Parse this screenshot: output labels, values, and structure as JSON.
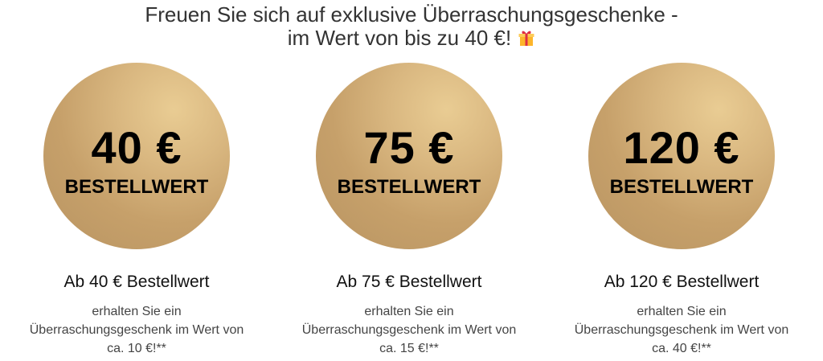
{
  "title": {
    "line1": "Freuen Sie sich auf exklusive Überraschungsgeschenke -",
    "line2": "im Wert von bis zu 40 €!",
    "icon": "gift-icon"
  },
  "tiers": [
    {
      "amount": "40 €",
      "label": "BESTELLWERT",
      "heading": "Ab 40 € Bestellwert",
      "line1": "erhalten Sie ein",
      "line2": "Überraschungsgeschenk im Wert von",
      "line3": "ca. 10 €!**"
    },
    {
      "amount": "75 €",
      "label": "BESTELLWERT",
      "heading": "Ab 75 € Bestellwert",
      "line1": "erhalten Sie ein",
      "line2": "Überraschungsgeschenk im Wert von",
      "line3": "ca. 15 €!**"
    },
    {
      "amount": "120 €",
      "label": "BESTELLWERT",
      "heading": "Ab 120 € Bestellwert",
      "line1": "erhalten Sie ein",
      "line2": "Überraschungsgeschenk im Wert von",
      "line3": "ca. 40 €!**"
    }
  ],
  "colors": {
    "gold": "#d4b07a",
    "text": "#333333"
  }
}
